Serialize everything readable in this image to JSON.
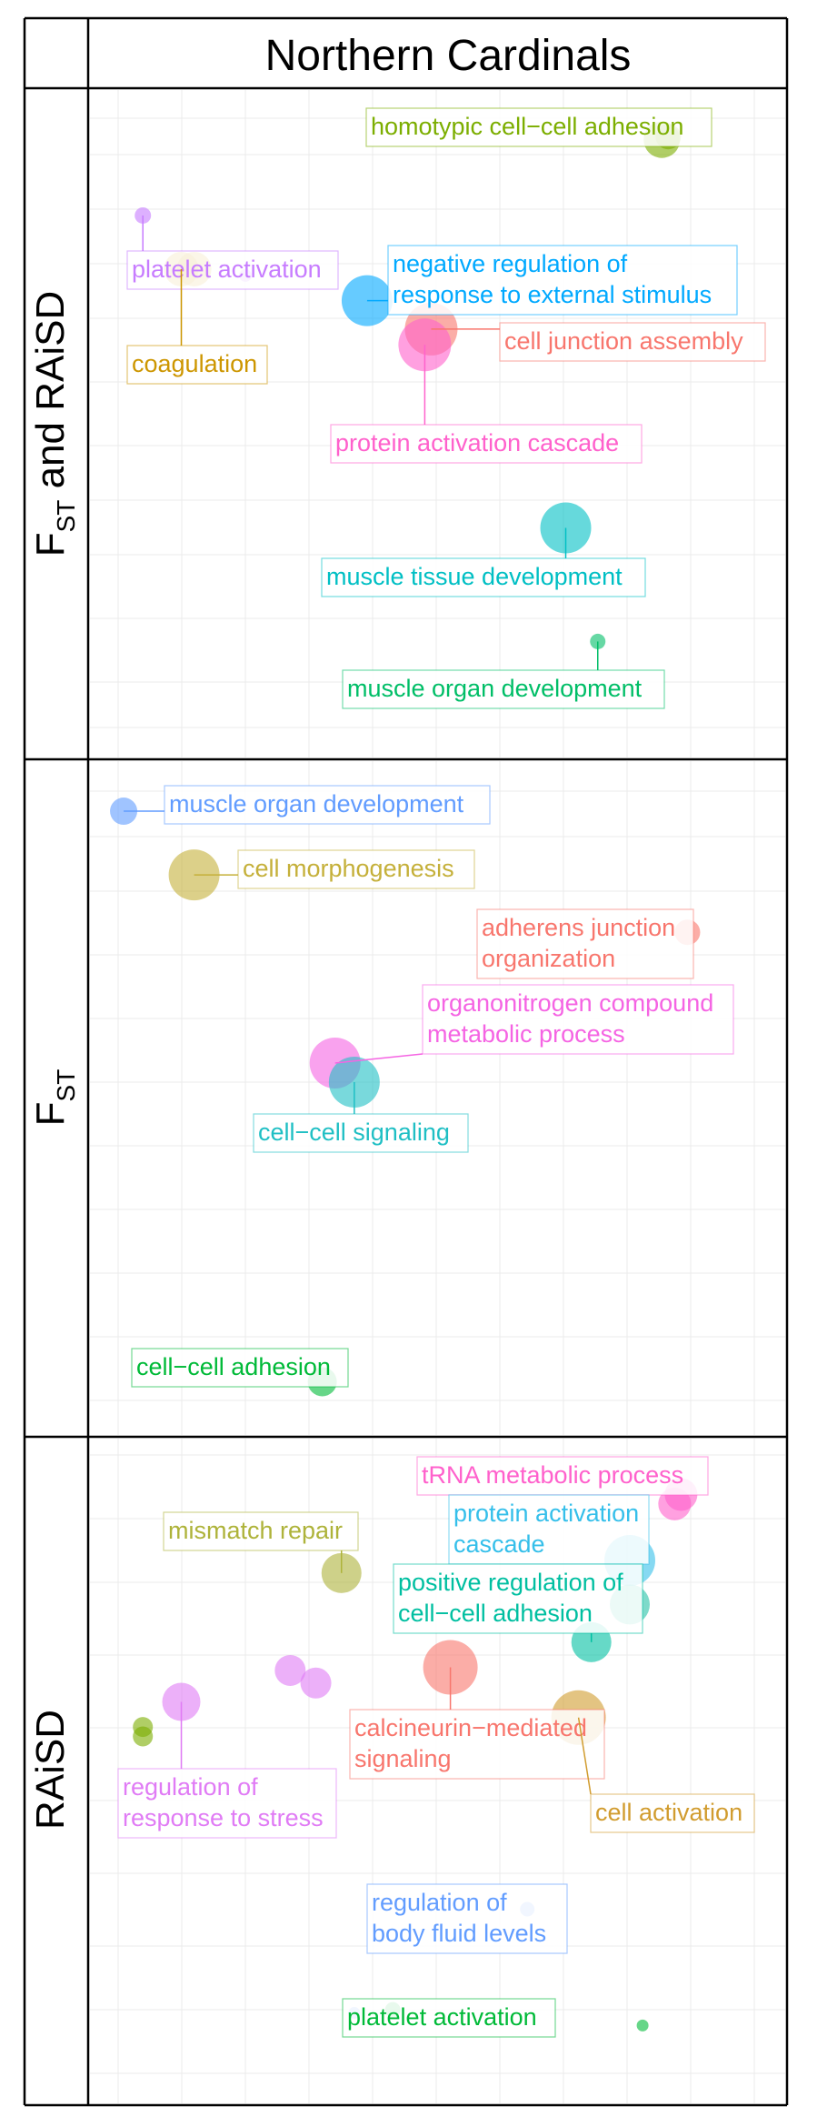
{
  "figure": {
    "column_header": "Northern Cardinals",
    "rows": [
      {
        "label_main": "F",
        "label_sub": "ST",
        "label_rest": " and RAiSD"
      },
      {
        "label_main": "F",
        "label_sub": "ST",
        "label_rest": ""
      },
      {
        "label_main": "RAiSD",
        "label_sub": "",
        "label_rest": ""
      }
    ]
  },
  "chart_data": [
    {
      "type": "scatter",
      "panel": "FST and RAiSD",
      "grid": true,
      "points": [
        {
          "label": [
            "homotypic cell−cell adhesion"
          ],
          "color": "#7cae00",
          "x": 0.85,
          "y": 0.05,
          "size": 1.6
        },
        {
          "label": [],
          "color": "#7cae00",
          "x": 0.86,
          "y": 0.045,
          "size": 1.0
        },
        {
          "label": [
            "platelet activation"
          ],
          "color": "#c77cff",
          "x": 0.04,
          "y": 0.17,
          "size": 0.5
        },
        {
          "label": [
            "coagulation"
          ],
          "color": "#cd9600",
          "x": 0.1,
          "y": 0.255,
          "size": 1.5
        },
        {
          "label": [],
          "color": "#cd9600",
          "x": 0.12,
          "y": 0.255,
          "size": 1.5
        },
        {
          "label": [],
          "color": "#c77cff",
          "x": 0.2,
          "y": 0.265,
          "size": 0.3
        },
        {
          "label": [
            "negative regulation of",
            "response to external stimulus"
          ],
          "color": "#00a9ff",
          "x": 0.39,
          "y": 0.305,
          "size": 2.4
        },
        {
          "label": [
            "cell junction assembly"
          ],
          "color": "#f8766d",
          "x": 0.49,
          "y": 0.35,
          "size": 2.5
        },
        {
          "label": [
            "protein activation cascade"
          ],
          "color": "#ff61cc",
          "x": 0.48,
          "y": 0.375,
          "size": 2.5
        },
        {
          "label": [
            "muscle tissue development"
          ],
          "color": "#00bfc4",
          "x": 0.7,
          "y": 0.665,
          "size": 2.4
        },
        {
          "label": [
            "muscle organ development"
          ],
          "color": "#00be67",
          "x": 0.75,
          "y": 0.845,
          "size": 0.45
        }
      ]
    },
    {
      "type": "scatter",
      "panel": "FST",
      "grid": true,
      "points": [
        {
          "label": [
            "muscle organ development"
          ],
          "color": "#619cff",
          "x": 0.01,
          "y": 0.05,
          "size": 1.1
        },
        {
          "label": [
            "cell morphogenesis"
          ],
          "color": "#c5b03a",
          "x": 0.12,
          "y": 0.15,
          "size": 2.4
        },
        {
          "label": [
            "adherens junction",
            "organization"
          ],
          "color": "#f8766d",
          "x": 0.89,
          "y": 0.24,
          "size": 1.0
        },
        {
          "label": [
            "organonitrogen compound",
            "metabolic process"
          ],
          "color": "#f564e3",
          "x": 0.34,
          "y": 0.445,
          "size": 2.4
        },
        {
          "label": [
            "cell−cell signaling"
          ],
          "color": "#1fbfc4",
          "x": 0.37,
          "y": 0.475,
          "size": 2.4
        },
        {
          "label": [
            "cell−cell adhesion"
          ],
          "color": "#00ba38",
          "x": 0.32,
          "y": 0.945,
          "size": 1.2
        }
      ]
    },
    {
      "type": "scatter",
      "panel": "RAiSD",
      "grid": true,
      "points": [
        {
          "label": [
            "tRNA metabolic process"
          ],
          "color": "#ff61cc",
          "x": 0.88,
          "y": 0.06,
          "size": 1.4
        },
        {
          "label": [],
          "color": "#ff61cc",
          "x": 0.87,
          "y": 0.075,
          "size": 1.4
        },
        {
          "label": [
            "mismatch repair"
          ],
          "color": "#aeb33a",
          "x": 0.35,
          "y": 0.185,
          "size": 1.8
        },
        {
          "label": [
            "protein activation",
            "cascade"
          ],
          "color": "#35bfea",
          "x": 0.8,
          "y": 0.165,
          "size": 2.4
        },
        {
          "label": [],
          "color": "#27c2a6",
          "x": 0.8,
          "y": 0.235,
          "size": 1.8
        },
        {
          "label": [
            "positive regulation of",
            "cell−cell adhesion"
          ],
          "color": "#00bfa1",
          "x": 0.74,
          "y": 0.295,
          "size": 1.8
        },
        {
          "label": [],
          "color": "#e07bf5",
          "x": 0.27,
          "y": 0.34,
          "size": 1.3
        },
        {
          "label": [],
          "color": "#e07bf5",
          "x": 0.31,
          "y": 0.36,
          "size": 1.3
        },
        {
          "label": [
            "calcineurin−mediated",
            "signaling"
          ],
          "color": "#f8766d",
          "x": 0.52,
          "y": 0.335,
          "size": 2.6
        },
        {
          "label": [
            "cell activation"
          ],
          "color": "#d19c2f",
          "x": 0.72,
          "y": 0.415,
          "size": 2.6
        },
        {
          "label": [
            "regulation of",
            "response to stress"
          ],
          "color": "#e07bf5",
          "x": 0.1,
          "y": 0.39,
          "size": 1.7
        },
        {
          "label": [],
          "color": "#7cae00",
          "x": 0.04,
          "y": 0.43,
          "size": 0.7
        },
        {
          "label": [],
          "color": "#7cae00",
          "x": 0.04,
          "y": 0.445,
          "size": 0.7
        },
        {
          "label": [
            "regulation of",
            "body fluid levels"
          ],
          "color": "#619cff",
          "x": 0.64,
          "y": 0.72,
          "size": 0.4
        },
        {
          "label": [
            "platelet activation"
          ],
          "color": "#00ba38",
          "x": 0.43,
          "y": 0.88,
          "size": 0.45
        },
        {
          "label": [],
          "color": "#619cff",
          "x": 0.37,
          "y": 0.885,
          "size": 0.25
        },
        {
          "label": [],
          "color": "#00ba38",
          "x": 0.82,
          "y": 0.905,
          "size": 0.25
        }
      ]
    }
  ]
}
